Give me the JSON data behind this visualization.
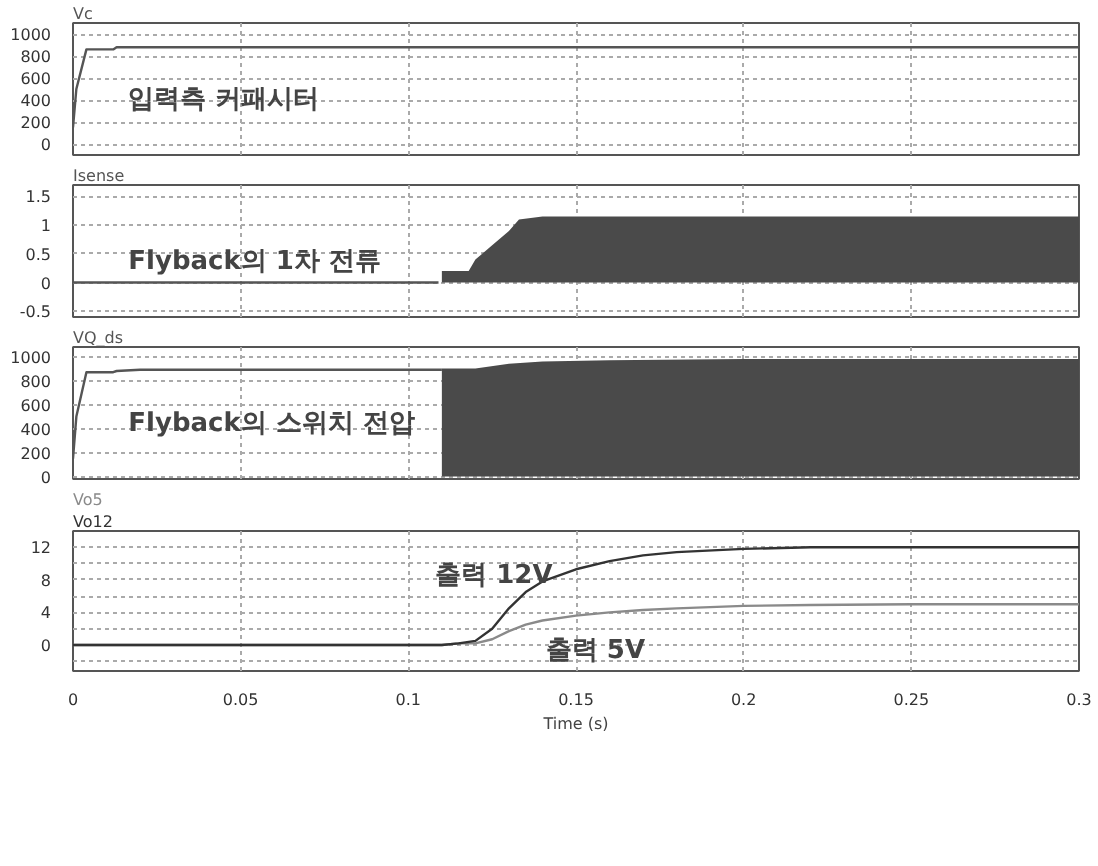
{
  "chart_data": [
    {
      "type": "line",
      "xlim": [
        0,
        0.3
      ],
      "xticks": [
        0,
        0.05,
        0.1,
        0.15,
        0.2,
        0.25,
        0.3
      ],
      "ylim": [
        -100,
        1100
      ],
      "yticks": [
        0,
        200,
        400,
        600,
        800,
        1000
      ],
      "grid": true,
      "tick_labels": "y",
      "series": [
        {
          "name": "Vc",
          "color": "#555555",
          "x": [
            0,
            0.001,
            0.004,
            0.008,
            0.012,
            0.013,
            0.02,
            0.3
          ],
          "values": [
            150,
            500,
            860,
            860,
            860,
            880,
            880,
            880
          ]
        }
      ],
      "annotations": [
        "입력측 커패시터"
      ]
    },
    {
      "type": "line",
      "xlim": [
        0,
        0.3
      ],
      "xticks": [
        0,
        0.05,
        0.1,
        0.15,
        0.2,
        0.25,
        0.3
      ],
      "ylim": [
        -0.6,
        1.7
      ],
      "yticks": [
        -0.5,
        0,
        0.5,
        1,
        1.5
      ],
      "grid": true,
      "tick_labels": "y",
      "series": [
        {
          "name": "Isense",
          "color": "#555555",
          "x": [
            0,
            0.109
          ],
          "values": [
            0,
            0
          ]
        },
        {
          "type": "area",
          "color": "#4a4a4a",
          "x": [
            0.11,
            0.118,
            0.12,
            0.125,
            0.13,
            0.133,
            0.14,
            0.16,
            0.2,
            0.25,
            0.3
          ],
          "values": [
            0.2,
            0.2,
            0.4,
            0.65,
            0.9,
            1.1,
            1.15,
            1.15,
            1.15,
            1.15,
            1.15
          ]
        }
      ],
      "annotations": [
        "Flyback의 1차 전류"
      ]
    },
    {
      "type": "line",
      "xlim": [
        0,
        0.3
      ],
      "xticks": [
        0,
        0.05,
        0.1,
        0.15,
        0.2,
        0.25,
        0.3
      ],
      "ylim": [
        -20,
        1080
      ],
      "yticks": [
        0,
        200,
        400,
        600,
        800,
        1000
      ],
      "grid": true,
      "tick_labels": "y",
      "series": [
        {
          "name": "VQ_ds",
          "color": "#555555",
          "x": [
            0,
            0.001,
            0.004,
            0.008,
            0.012,
            0.013,
            0.02,
            0.11
          ],
          "values": [
            150,
            500,
            870,
            870,
            870,
            880,
            890,
            890
          ]
        },
        {
          "type": "area",
          "color": "#4a4a4a",
          "x": [
            0.11,
            0.12,
            0.13,
            0.14,
            0.16,
            0.2,
            0.25,
            0.3
          ],
          "values": [
            900,
            900,
            940,
            960,
            970,
            980,
            980,
            980
          ]
        }
      ],
      "annotations": [
        "Flyback의 스위치 전압"
      ]
    },
    {
      "type": "line",
      "xlim": [
        0,
        0.3
      ],
      "xticks": [
        0,
        0.05,
        0.1,
        0.15,
        0.2,
        0.25,
        0.3
      ],
      "ylim": [
        -3.2,
        14
      ],
      "yticks": [
        {
          "value": -2,
          "label": null
        },
        0,
        {
          "value": 2,
          "label": null
        },
        4,
        {
          "value": 6,
          "label": null
        },
        8,
        {
          "value": 10,
          "label": null
        },
        12
      ],
      "grid": true,
      "xlabel": "Time (s)",
      "series": [
        {
          "name": "Vo5",
          "color": "#8a8a8a",
          "x": [
            0,
            0.11,
            0.115,
            0.12,
            0.125,
            0.13,
            0.135,
            0.14,
            0.15,
            0.16,
            0.17,
            0.18,
            0.2,
            0.22,
            0.25,
            0.3
          ],
          "values": [
            0,
            0,
            0.2,
            0.2,
            0.7,
            1.7,
            2.5,
            3,
            3.6,
            4,
            4.3,
            4.5,
            4.8,
            4.9,
            5,
            5
          ]
        },
        {
          "name": "Vo12",
          "color": "#333333",
          "x": [
            0,
            0.11,
            0.115,
            0.12,
            0.125,
            0.13,
            0.135,
            0.14,
            0.15,
            0.16,
            0.17,
            0.18,
            0.2,
            0.22,
            0.25,
            0.3
          ],
          "values": [
            0,
            0,
            0.2,
            0.5,
            2,
            4.5,
            6.5,
            7.8,
            9.3,
            10.3,
            11,
            11.4,
            11.8,
            12,
            12,
            12
          ]
        }
      ],
      "annotations": [
        "출력 12V",
        "출력 5V"
      ]
    }
  ]
}
